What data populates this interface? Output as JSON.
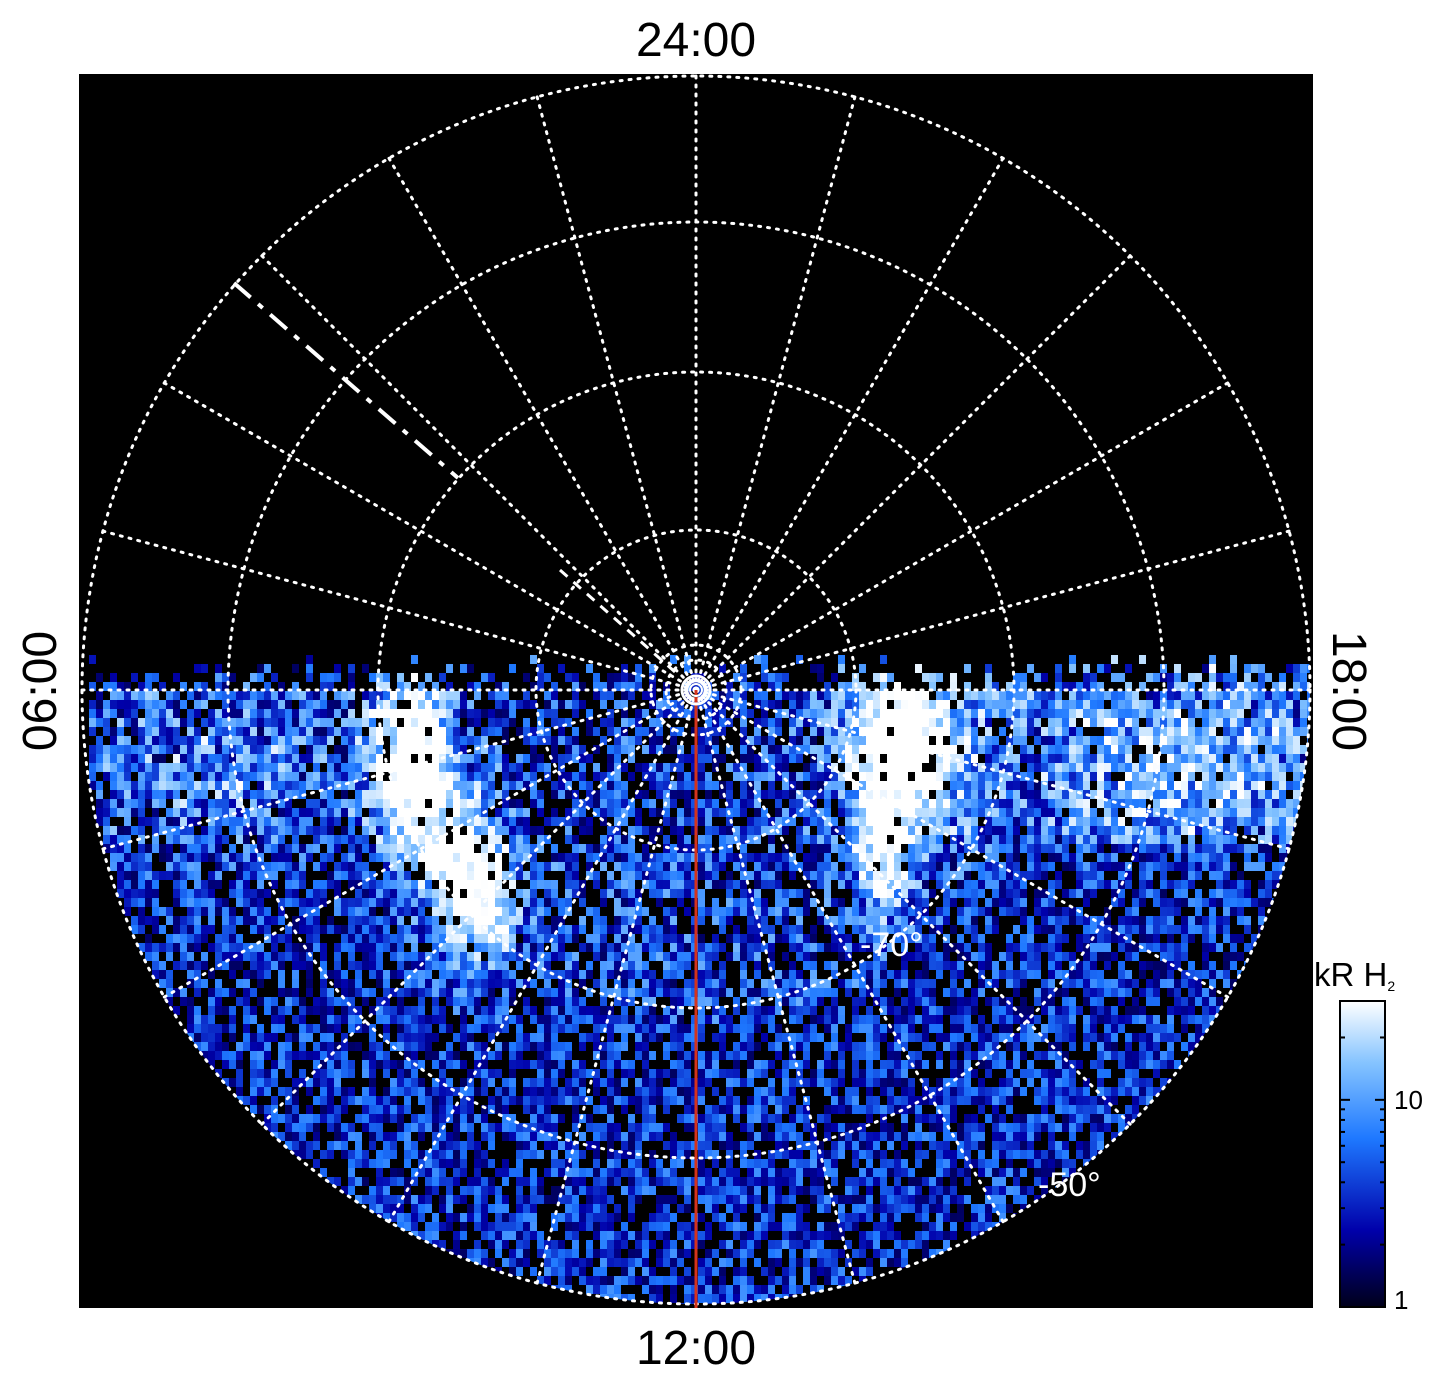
{
  "chart_data": {
    "type": "heatmap",
    "projection": "polar (southern hemisphere)",
    "local_time_labels": {
      "top": "24:00",
      "bottom": "12:00",
      "left": "06:00",
      "right": "18:00"
    },
    "latitude_labels": [
      "-70°",
      "-50°"
    ],
    "colorbar": {
      "label": "kR H",
      "label_subscript": "2",
      "scale": "log",
      "range": [
        1,
        30
      ],
      "tick_labels": [
        "1",
        "10"
      ],
      "colors": [
        "#00001a",
        "#0000aa",
        "#1e78ff",
        "#86c4ff",
        "#ffffff"
      ]
    },
    "grid": true,
    "background": "#000000",
    "grid_color": "#ffffff",
    "noon_line_color": "#d4331c",
    "observed_region": "dayside half (06:00 → 12:00 → 18:00)",
    "bright_features": [
      "dawn-side auroral arc near 06:00–08:00",
      "dusk-side auroral arc near 15:00–17:00"
    ]
  }
}
